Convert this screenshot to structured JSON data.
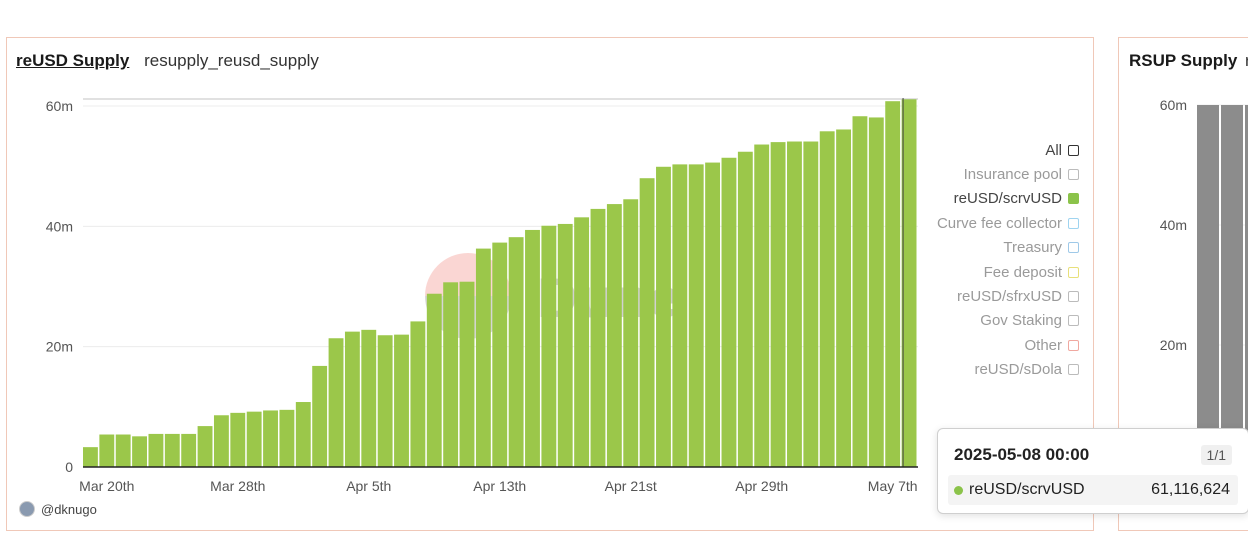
{
  "main_panel": {
    "title": "reUSD Supply",
    "subtitle": "resupply_reusd_supply",
    "author": "@dknugo",
    "legend": [
      {
        "label": "All",
        "color": "#333333",
        "active": true,
        "filled": false
      },
      {
        "label": "Insurance pool",
        "color": "#bbbbbb",
        "active": false,
        "filled": false
      },
      {
        "label": "reUSD/scrvUSD",
        "color": "#8bc34a",
        "active": true,
        "filled": true
      },
      {
        "label": "Curve fee collector",
        "color": "#9fd4f0",
        "active": false,
        "filled": false
      },
      {
        "label": "Treasury",
        "color": "#9fc9e8",
        "active": false,
        "filled": false
      },
      {
        "label": "Fee deposit",
        "color": "#e8e07a",
        "active": false,
        "filled": false
      },
      {
        "label": "reUSD/sfrxUSD",
        "color": "#bbbbbb",
        "active": false,
        "filled": false
      },
      {
        "label": "Gov Staking",
        "color": "#bbbbbb",
        "active": false,
        "filled": false
      },
      {
        "label": "Other",
        "color": "#f0a8a0",
        "active": false,
        "filled": false
      },
      {
        "label": "reUSD/sDola",
        "color": "#bbbbbb",
        "active": false,
        "filled": false
      }
    ],
    "watermark": "Dune",
    "tooltip": {
      "date": "2025-05-08 00:00",
      "page": "1/1",
      "series": "reUSD/scrvUSD",
      "value": "61,116,624",
      "color": "#8bc34a"
    }
  },
  "side_panel": {
    "title": "RSUP Supply",
    "subtitle": "r",
    "y_ticks": [
      "60m",
      "40m",
      "20m"
    ]
  },
  "chart_data": [
    {
      "type": "bar",
      "title": "reUSD Supply",
      "ylim": [
        0,
        61000000
      ],
      "y_ticks": [
        {
          "value": 0,
          "label": "0"
        },
        {
          "value": 20000000,
          "label": "20m"
        },
        {
          "value": 40000000,
          "label": "40m"
        },
        {
          "value": 60000000,
          "label": "60m"
        }
      ],
      "x_ticks": [
        {
          "index": 1,
          "label": "Mar 20th"
        },
        {
          "index": 9,
          "label": "Mar 28th"
        },
        {
          "index": 17,
          "label": "Apr 5th"
        },
        {
          "index": 25,
          "label": "Apr 13th"
        },
        {
          "index": 33,
          "label": "Apr 21st"
        },
        {
          "index": 41,
          "label": "Apr 29th"
        },
        {
          "index": 49,
          "label": "May 7th"
        }
      ],
      "categories": [
        "2025-03-19",
        "2025-03-20",
        "2025-03-21",
        "2025-03-22",
        "2025-03-23",
        "2025-03-24",
        "2025-03-25",
        "2025-03-26",
        "2025-03-27",
        "2025-03-28",
        "2025-03-29",
        "2025-03-30",
        "2025-03-31",
        "2025-04-01",
        "2025-04-02",
        "2025-04-03",
        "2025-04-04",
        "2025-04-05",
        "2025-04-06",
        "2025-04-07",
        "2025-04-08",
        "2025-04-09",
        "2025-04-10",
        "2025-04-11",
        "2025-04-12",
        "2025-04-13",
        "2025-04-14",
        "2025-04-15",
        "2025-04-16",
        "2025-04-17",
        "2025-04-18",
        "2025-04-19",
        "2025-04-20",
        "2025-04-21",
        "2025-04-22",
        "2025-04-23",
        "2025-04-24",
        "2025-04-25",
        "2025-04-26",
        "2025-04-27",
        "2025-04-28",
        "2025-04-29",
        "2025-04-30",
        "2025-05-01",
        "2025-05-02",
        "2025-05-03",
        "2025-05-04",
        "2025-05-05",
        "2025-05-06",
        "2025-05-07",
        "2025-05-08"
      ],
      "series": [
        {
          "name": "reUSD/scrvUSD",
          "color": "#9bc74a",
          "values": [
            3300000,
            5400000,
            5400000,
            5100000,
            5500000,
            5500000,
            5500000,
            6800000,
            8600000,
            9000000,
            9200000,
            9400000,
            9500000,
            10800000,
            16800000,
            21400000,
            22500000,
            22800000,
            21900000,
            22000000,
            24200000,
            28800000,
            30700000,
            30800000,
            36300000,
            37300000,
            38200000,
            39400000,
            40100000,
            40400000,
            41500000,
            42900000,
            43700000,
            44500000,
            48000000,
            49900000,
            50300000,
            50300000,
            50600000,
            51400000,
            52400000,
            53600000,
            54000000,
            54100000,
            54100000,
            55800000,
            56100000,
            58300000,
            58100000,
            60800000,
            61116624
          ]
        }
      ]
    }
  ]
}
